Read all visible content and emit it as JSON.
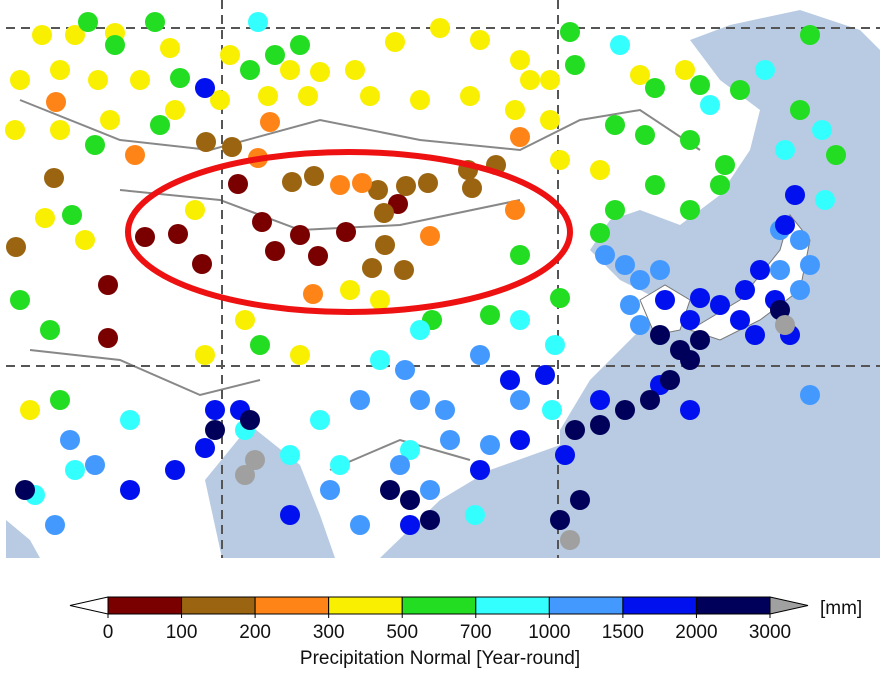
{
  "colorbar": {
    "bins": [
      {
        "color": "#7a0000"
      },
      {
        "color": "#9a6410"
      },
      {
        "color": "#ff8418"
      },
      {
        "color": "#f8f000"
      },
      {
        "color": "#22dd22"
      },
      {
        "color": "#33ffff"
      },
      {
        "color": "#4499ff"
      },
      {
        "color": "#0010ee"
      },
      {
        "color": "#00005a"
      }
    ],
    "under_color": "#ffffff",
    "over_color": "#a0a0a0",
    "ticks": [
      0,
      100,
      200,
      300,
      500,
      700,
      1000,
      1500,
      2000,
      3000
    ],
    "unit": "[mm]",
    "label": "Precipitation Normal [Year-round]"
  }
}
